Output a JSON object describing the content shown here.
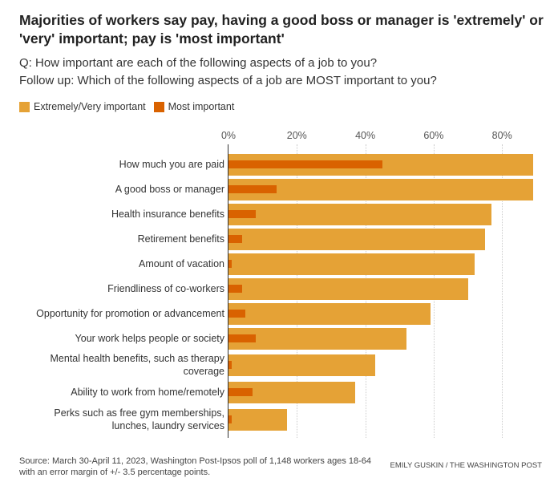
{
  "chart_data": {
    "type": "bar",
    "orientation": "horizontal",
    "title": "Majorities of workers say pay, having a good boss or manager is 'extremely' or 'very' important; pay is 'most important'",
    "subtitle_lines": [
      "Q: How important are each of the following aspects of a job to you?",
      "Follow up: Which of the following aspects of a job are MOST important to you?"
    ],
    "categories": [
      "How much you are paid",
      "A good boss or manager",
      "Health insurance benefits",
      "Retirement benefits",
      "Amount of vacation",
      "Friendliness of co-workers",
      "Opportunity for promotion or advancement",
      "Your work helps people or society",
      "Mental health benefits, such as therapy coverage",
      "Ability to work from home/remotely",
      "Perks such as free gym memberships, lunches, laundry services"
    ],
    "series": [
      {
        "name": "Extremely/Very important",
        "color": "#e5a236",
        "values": [
          89,
          89,
          77,
          75,
          72,
          70,
          59,
          52,
          43,
          37,
          17
        ]
      },
      {
        "name": "Most important",
        "color": "#d96200",
        "values": [
          45,
          14,
          8,
          4,
          1,
          4,
          5,
          8,
          1,
          7,
          1
        ]
      }
    ],
    "xlim": [
      0,
      89
    ],
    "xticks": [
      "0%",
      "20%",
      "40%",
      "60%",
      "80%"
    ],
    "xtick_values": [
      0,
      20,
      40,
      60,
      80
    ],
    "grid": true,
    "legend": "top-left"
  },
  "source": "Source: March 30-April 11, 2023, Washington Post-Ipsos poll of 1,148 workers ages 18-64 with an error margin of +/- 3.5 percentage points.",
  "credit": "EMILY GUSKIN / THE WASHINGTON POST"
}
